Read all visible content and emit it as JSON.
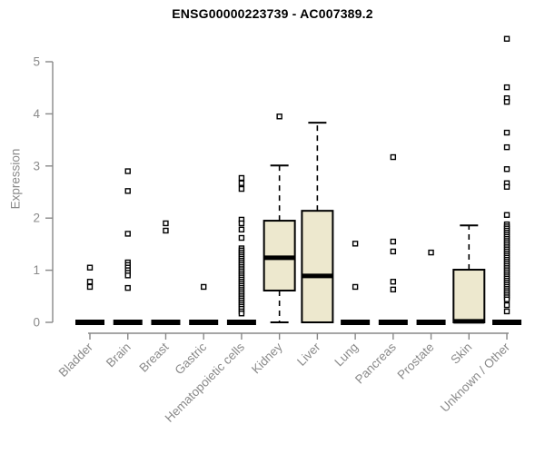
{
  "colors": {
    "background": "#ffffff",
    "box_fill": "#EDE8CE",
    "box_border": "#000000",
    "median": "#000000",
    "whisker": "#000000",
    "collapsed_bar": "#000000",
    "marker_stroke": "#000000",
    "marker_fill": "#ffffff",
    "axis": "#888888",
    "tick_label": "#8a8a8a",
    "title": "#000000"
  },
  "chart_data": {
    "type": "boxplot",
    "title": "ENSG00000223739 - AC007389.2",
    "ylabel": "Expression",
    "xlabel": "",
    "ylim": [
      0,
      5.5
    ],
    "yticks": [
      0,
      1,
      2,
      3,
      4,
      5
    ],
    "grid": false,
    "legend": false,
    "categories": [
      "Bladder",
      "Brain",
      "Breast",
      "Gastric",
      "Hematopoietic cells",
      "Kidney",
      "Liver",
      "Lung",
      "Pancreas",
      "Prostate",
      "Skin",
      "Unknown / Other"
    ],
    "series": [
      {
        "category": "Bladder",
        "box": null,
        "outliers": [
          1.05,
          0.78,
          0.68
        ]
      },
      {
        "category": "Brain",
        "box": null,
        "outliers": [
          2.9,
          2.52,
          1.7,
          1.15,
          1.1,
          1.05,
          1.0,
          0.95,
          0.9,
          0.66
        ]
      },
      {
        "category": "Breast",
        "box": null,
        "outliers": [
          1.9,
          1.76
        ]
      },
      {
        "category": "Gastric",
        "box": null,
        "outliers": [
          0.68
        ]
      },
      {
        "category": "Hematopoietic cells",
        "box": null,
        "outliers": [
          2.77,
          2.67,
          2.56,
          1.97,
          1.9,
          1.78,
          1.62,
          1.42,
          1.38,
          1.34,
          1.3,
          1.26,
          1.22,
          1.18,
          1.14,
          1.1,
          1.06,
          1.02,
          0.98,
          0.94,
          0.9,
          0.86,
          0.82,
          0.78,
          0.74,
          0.7,
          0.66,
          0.62,
          0.58,
          0.54,
          0.5,
          0.46,
          0.42,
          0.38,
          0.34,
          0.3,
          0.26,
          0.21,
          0.17
        ]
      },
      {
        "category": "Kidney",
        "box": {
          "q1": 0.61,
          "median": 1.24,
          "q3": 1.95,
          "whisker_low": 0,
          "whisker_high": 3.01
        },
        "outliers": [
          3.95
        ]
      },
      {
        "category": "Liver",
        "box": {
          "q1": 0,
          "median": 0.89,
          "q3": 2.14,
          "whisker_low": 0,
          "whisker_high": 3.83
        },
        "outliers": []
      },
      {
        "category": "Lung",
        "box": null,
        "outliers": [
          1.51,
          0.68
        ]
      },
      {
        "category": "Pancreas",
        "box": null,
        "outliers": [
          3.17,
          1.55,
          1.36,
          0.78,
          0.63
        ]
      },
      {
        "category": "Prostate",
        "box": null,
        "outliers": [
          1.34
        ]
      },
      {
        "category": "Skin",
        "box": {
          "q1": 0,
          "median": 0.02,
          "q3": 1.01,
          "whisker_low": 0,
          "whisker_high": 1.86
        },
        "outliers": []
      },
      {
        "category": "Unknown / Other",
        "box": null,
        "outliers": [
          5.44,
          4.51,
          4.3,
          4.23,
          3.64,
          3.36,
          2.94,
          2.67,
          2.6,
          2.06,
          1.88,
          1.84,
          1.8,
          1.76,
          1.72,
          1.68,
          1.64,
          1.6,
          1.56,
          1.52,
          1.48,
          1.44,
          1.4,
          1.36,
          1.32,
          1.28,
          1.24,
          1.2,
          1.16,
          1.12,
          1.08,
          1.04,
          1.0,
          0.96,
          0.92,
          0.88,
          0.84,
          0.8,
          0.76,
          0.72,
          0.68,
          0.64,
          0.6,
          0.56,
          0.52,
          0.48,
          0.44,
          0.33,
          0.21
        ]
      }
    ]
  }
}
